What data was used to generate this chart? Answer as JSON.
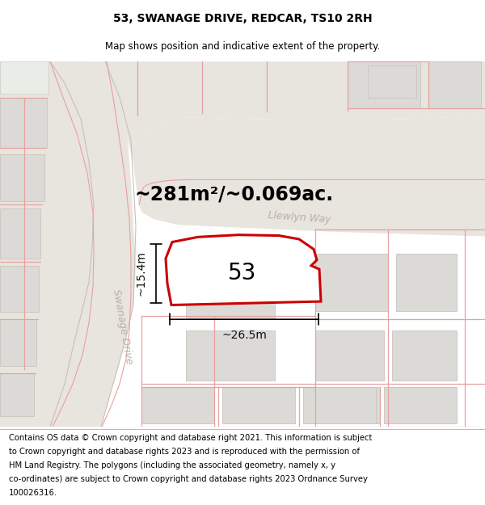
{
  "title_line1": "53, SWANAGE DRIVE, REDCAR, TS10 2RH",
  "title_line2": "Map shows position and indicative extent of the property.",
  "footer_lines": [
    "Contains OS data © Crown copyright and database right 2021. This information is subject",
    "to Crown copyright and database rights 2023 and is reproduced with the permission of",
    "HM Land Registry. The polygons (including the associated geometry, namely x, y",
    "co-ordinates) are subject to Crown copyright and database rights 2023 Ordnance Survey",
    "100026316."
  ],
  "area_text": "~281m²/~0.069ac.",
  "label_width": "~26.5m",
  "label_height": "~15.4m",
  "property_number": "53",
  "bg_color": "#f8f7f5",
  "map_bg": "#ffffff",
  "road_color": "#e8e4de",
  "road_edge": "#c8c0b8",
  "plot_fill": "#ffffff",
  "plot_stroke": "#cc0000",
  "building_fill": "#dcdad6",
  "building_edge": "#c8c4be",
  "boundary_color": "#e8a0a0",
  "street_label_color": "#b8b0a8",
  "dim_color": "#111111",
  "title_fontsize": 10,
  "subtitle_fontsize": 8.5,
  "footer_fontsize": 7.2,
  "area_fontsize": 17,
  "dim_label_fontsize": 10,
  "number_fontsize": 20,
  "street_label_fontsize": 9
}
